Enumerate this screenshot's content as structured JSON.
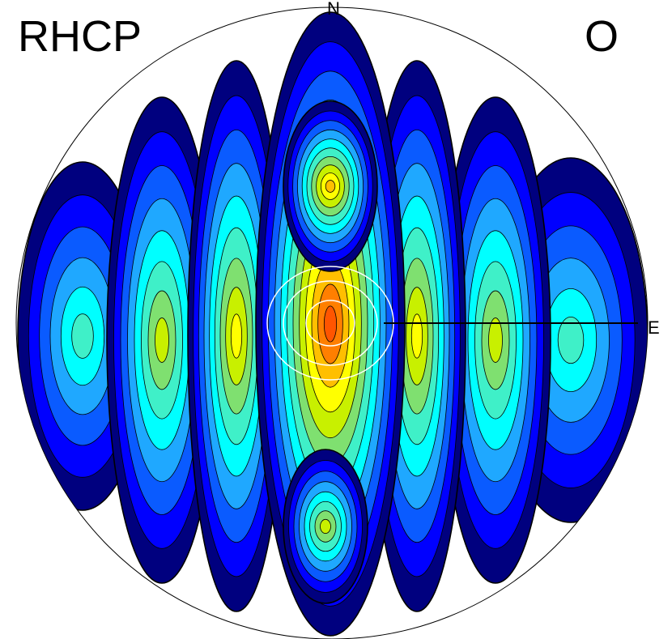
{
  "labels": {
    "top_left": "RHCP",
    "top_right": "O",
    "north": "N",
    "east": "E"
  },
  "chart_data": {
    "type": "heatmap",
    "projection": "polar",
    "colormap": [
      "#00007f",
      "#0000ff",
      "#0a5bff",
      "#1fa8ff",
      "#00ffff",
      "#3ff0c8",
      "#7fe070",
      "#c8f000",
      "#ffff00",
      "#ffbf00",
      "#ff7f00",
      "#ff5500"
    ],
    "lobes": [
      {
        "name": "central-main",
        "level": 11
      },
      {
        "name": "central-upper",
        "level": 9
      },
      {
        "name": "central-lower",
        "level": 7
      },
      {
        "name": "inner-left",
        "level": 8
      },
      {
        "name": "inner-right",
        "level": 8
      },
      {
        "name": "mid-left",
        "level": 7
      },
      {
        "name": "mid-right",
        "level": 7
      },
      {
        "name": "outer-left",
        "level": 5
      },
      {
        "name": "outer-right",
        "level": 5
      }
    ],
    "overlay_rings": 3,
    "grid": false,
    "legend": "none"
  }
}
